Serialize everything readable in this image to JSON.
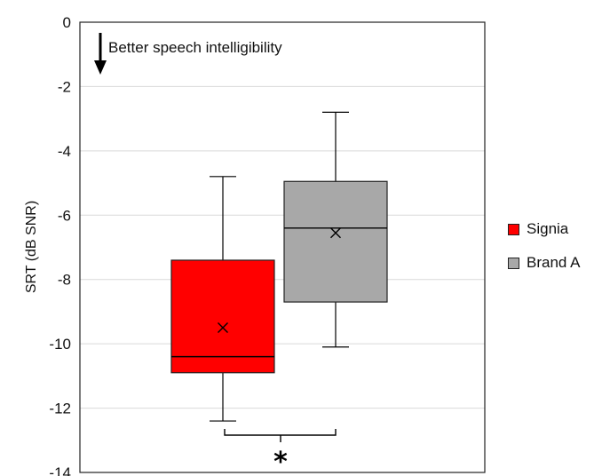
{
  "chart_data": {
    "type": "box",
    "ylabel": "SRT (dB SNR)",
    "ylim": [
      -14,
      0
    ],
    "yticks": [
      0,
      -2,
      -4,
      -6,
      -8,
      -10,
      -12,
      -14
    ],
    "grid": true,
    "annotation": "Better speech intelligibility",
    "significance_marker": "*",
    "legend_position": "right",
    "series": [
      {
        "name": "Signia",
        "color": "#ff0000",
        "whisker_low": -12.4,
        "q1": -10.9,
        "median": -10.4,
        "q3": -7.4,
        "whisker_high": -4.8,
        "mean": -9.5
      },
      {
        "name": "Brand A",
        "color": "#a8a8a8",
        "whisker_low": -10.1,
        "q1": -8.7,
        "median": -6.4,
        "q3": -4.95,
        "whisker_high": -2.8,
        "mean": -6.55
      }
    ]
  }
}
